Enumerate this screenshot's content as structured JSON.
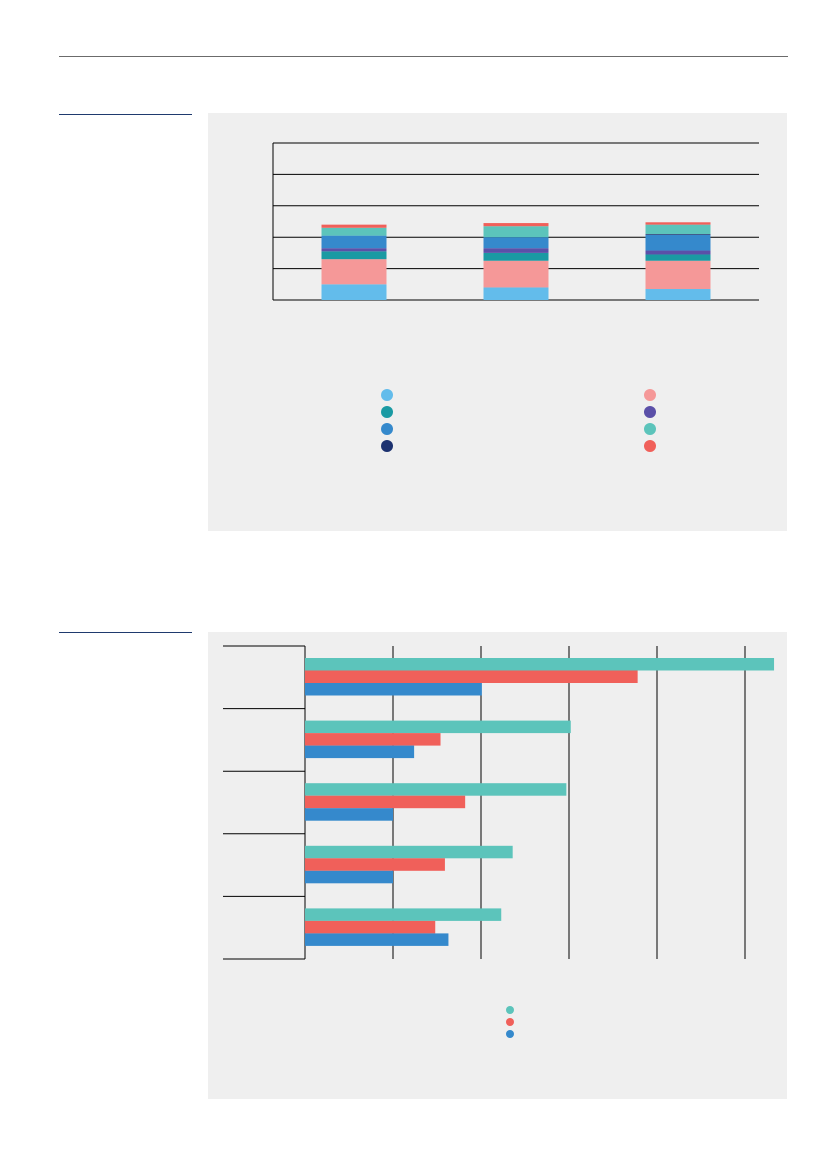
{
  "colors": {
    "rule": "#1f3a6e",
    "panel": "#efefef",
    "axis": "#000000"
  },
  "chart_data": [
    {
      "type": "bar",
      "subtype": "stacked",
      "categories": [
        "",
        "",
        ""
      ],
      "ylim": [
        0,
        100
      ],
      "grid": true,
      "legend_position": "bottom",
      "series": [
        {
          "values": [
            10,
            8,
            7
          ],
          "color": "#63bceb"
        },
        {
          "values": [
            16,
            17,
            18
          ],
          "color": "#f59898"
        },
        {
          "values": [
            5,
            5,
            4
          ],
          "color": "#1a9aa3"
        },
        {
          "values": [
            2,
            3,
            2.5
          ],
          "color": "#5b50a8"
        },
        {
          "values": [
            8,
            7,
            10
          ],
          "color": "#3589cc"
        },
        {
          "values": [
            0,
            0,
            0.5
          ],
          "color": "#1c3270"
        },
        {
          "values": [
            5,
            7,
            6
          ],
          "color": "#5cc4bb"
        },
        {
          "values": [
            2,
            2,
            1.5
          ],
          "color": "#f0605a"
        }
      ]
    },
    {
      "type": "bar",
      "subtype": "horizontal-grouped",
      "categories": [
        "",
        "",
        "",
        "",
        ""
      ],
      "xlim": [
        0,
        54
      ],
      "grid": true,
      "legend_position": "bottom",
      "series": [
        {
          "values": [
            53.3,
            30.2,
            29.7,
            23.6,
            22.3
          ],
          "color": "#5cc4bb"
        },
        {
          "values": [
            37.8,
            15.4,
            18.2,
            15.9,
            14.8
          ],
          "color": "#f0605a"
        },
        {
          "values": [
            20.1,
            12.4,
            10.0,
            10.0,
            16.3
          ],
          "color": "#3589cc"
        }
      ]
    }
  ]
}
